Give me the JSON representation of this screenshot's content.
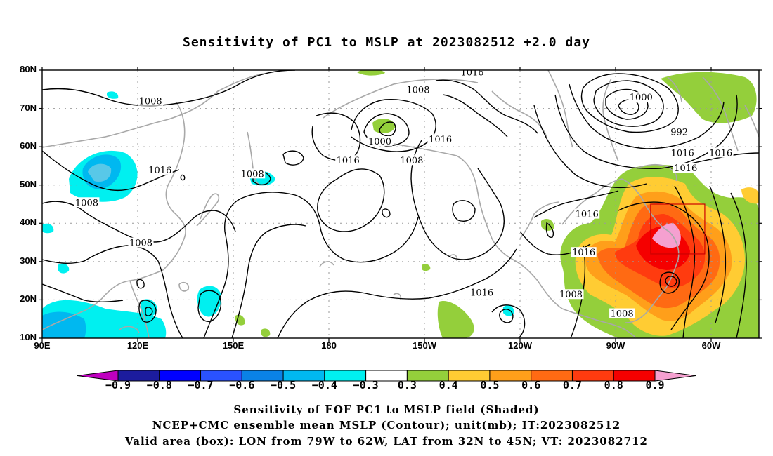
{
  "title": "Sensitivity of PC1 to MSLP at 2023082512 +2.0 day",
  "map": {
    "lat_labels": [
      "80N",
      "70N",
      "60N",
      "50N",
      "40N",
      "30N",
      "20N",
      "10N"
    ],
    "lon_labels": [
      "90E",
      "120E",
      "150E",
      "180",
      "150W",
      "120W",
      "90W",
      "60W"
    ],
    "contour_labels": [
      {
        "text": "1016",
        "lon": 225,
        "lat": 79.5
      },
      {
        "text": "1008",
        "lon": 124,
        "lat": 72
      },
      {
        "text": "1008",
        "lon": 208,
        "lat": 75
      },
      {
        "text": "1000",
        "lon": 278,
        "lat": 73
      },
      {
        "text": "992",
        "lon": 290,
        "lat": 64
      },
      {
        "text": "1000",
        "lon": 196,
        "lat": 61.5
      },
      {
        "text": "1008",
        "lon": 206,
        "lat": 56.5
      },
      {
        "text": "1016",
        "lon": 215,
        "lat": 62
      },
      {
        "text": "1016",
        "lon": 186,
        "lat": 56.5
      },
      {
        "text": "1016",
        "lon": 127,
        "lat": 54
      },
      {
        "text": "1008",
        "lon": 156,
        "lat": 53
      },
      {
        "text": "1016",
        "lon": 291,
        "lat": 58.5
      },
      {
        "text": "1016",
        "lon": 303,
        "lat": 58.5
      },
      {
        "text": "1016",
        "lon": 292,
        "lat": 54.5
      },
      {
        "text": "1008",
        "lon": 104,
        "lat": 45.5
      },
      {
        "text": "1016",
        "lon": 261,
        "lat": 42.5
      },
      {
        "text": "1008",
        "lon": 121,
        "lat": 35
      },
      {
        "text": "1016",
        "lon": 260,
        "lat": 32.5
      },
      {
        "text": "1016",
        "lon": 228,
        "lat": 22
      },
      {
        "text": "1008",
        "lon": 256,
        "lat": 21.5
      },
      {
        "text": "1008",
        "lon": 272,
        "lat": 16.5
      }
    ],
    "box": {
      "lon_min": 281,
      "lon_max": 298,
      "lat_min": 32,
      "lat_max": 45
    },
    "colors": {
      "ocean": "#ffffff",
      "coast": "#a8a8a8",
      "contour": "#000000",
      "grid": "#9a9a9a"
    }
  },
  "colorbar": {
    "labels": [
      "−0.9",
      "−0.8",
      "−0.7",
      "−0.6",
      "−0.5",
      "−0.4",
      "−0.3",
      "0.3",
      "0.4",
      "0.5",
      "0.6",
      "0.7",
      "0.8",
      "0.9"
    ],
    "colors": [
      "#bf00bf",
      "#1c1c9e",
      "#0000ff",
      "#2a52ff",
      "#0a82e6",
      "#00b8f0",
      "#00f0f0",
      "#ffffff",
      "#94cf3b",
      "#ffcc33",
      "#ff9f1a",
      "#ff6a13",
      "#ff3b0f",
      "#f50000",
      "#f5a0d0"
    ]
  },
  "captions": [
    "Sensitivity of EOF PC1 to MSLP field (Shaded)",
    "NCEP+CMC ensemble mean MSLP (Contour); unit(mb); IT:2023082512",
    "Valid area (box): LON from 79W to 62W, LAT from 32N to 45N; VT: 2023082712"
  ]
}
